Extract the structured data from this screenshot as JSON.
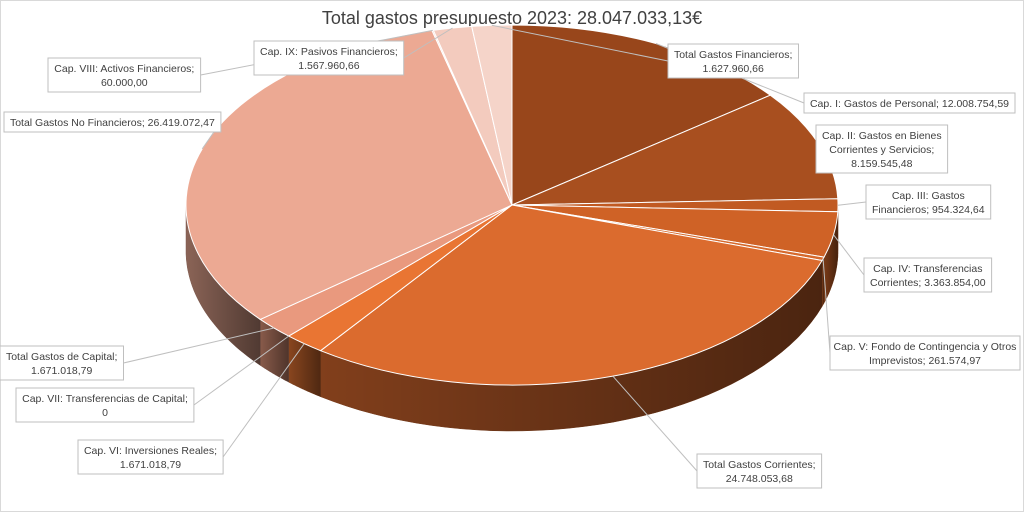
{
  "chart_data": {
    "type": "pie",
    "title": "Total gastos presupuesto 2023: 28.047.033,13€",
    "slices": [
      {
        "label": "Cap. I: Gastos de Personal; 12.008.754,59",
        "value": 12008754.59,
        "color": "#98461b"
      },
      {
        "label": "Cap. II: Gastos en Bienes Corrientes y Servicios; 8.159.545,48",
        "value": 8159545.48,
        "color": "#a84f1f"
      },
      {
        "label": "Cap. III: Gastos Financieros; 954.324,64",
        "value": 954324.64,
        "color": "#c15a22"
      },
      {
        "label": "Cap. IV: Transferencias Corrientes; 3.363.854,00",
        "value": 3363854.0,
        "color": "#cf6226"
      },
      {
        "label": "Cap. V: Fondo de Contingencia y Otros Imprevistos; 261.574,97",
        "value": 261574.97,
        "color": "#d6692c"
      },
      {
        "label": "Total Gastos Corrientes; 24.748.053,68",
        "value": 24748053.68,
        "color": "#db6b2e"
      },
      {
        "label": "Cap. VI: Inversiones Reales; 1.671.018,79",
        "value": 1671018.79,
        "color": "#e97533"
      },
      {
        "label": "Cap. VII: Transferencias de Capital; 0",
        "value": 0,
        "color": "#e8845a"
      },
      {
        "label": "Total Gastos de Capital; 1.671.018,79",
        "value": 1671018.79,
        "color": "#e9997e"
      },
      {
        "label": "Total Gastos No Financieros; 26.419.072,47",
        "value": 26419072.47,
        "color": "#eca993"
      },
      {
        "label": "Cap. VIII: Activos Financieros; 60.000,00",
        "value": 60000.0,
        "color": "#f2c7b8"
      },
      {
        "label": "Cap. IX: Pasivos Financieros; 1.567.960,66",
        "value": 1567960.66,
        "color": "#f3cbbe"
      },
      {
        "label": "Total Gastos Financieros; 1.627.960,66",
        "value": 1627960.66,
        "color": "#f5d4c9"
      }
    ],
    "legend": "none",
    "style": "3d-pie"
  }
}
